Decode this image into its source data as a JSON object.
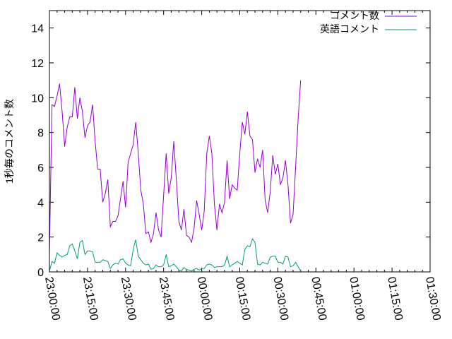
{
  "chart_data": {
    "type": "line",
    "ylabel": "1秒毎のコメント数",
    "ylim": [
      0,
      15
    ],
    "y_ticks": [
      0,
      2,
      4,
      6,
      8,
      10,
      12,
      14
    ],
    "x_ticks": [
      "23:00:00",
      "23:15:00",
      "23:30:00",
      "23:45:00",
      "00:00:00",
      "00:15:00",
      "00:30:00",
      "00:45:00",
      "01:00:00",
      "01:15:00",
      "01:30:00"
    ],
    "x_range_minutes": [
      0,
      150
    ],
    "x_unit_note": "minutes after 23:00:00",
    "legend_position": "top-right",
    "series": [
      {
        "name": "コメント数",
        "color": "#9400d3",
        "points": [
          [
            0,
            1.0
          ],
          [
            1,
            9.6
          ],
          [
            2,
            9.5
          ],
          [
            3,
            10.1
          ],
          [
            4,
            10.8
          ],
          [
            5,
            9.2
          ],
          [
            6,
            7.2
          ],
          [
            7,
            8.3
          ],
          [
            8,
            8.9
          ],
          [
            9,
            8.9
          ],
          [
            10,
            10.6
          ],
          [
            11,
            8.8
          ],
          [
            12,
            10.0
          ],
          [
            13,
            9.2
          ],
          [
            14,
            7.7
          ],
          [
            15,
            8.4
          ],
          [
            16,
            8.6
          ],
          [
            17,
            9.6
          ],
          [
            18,
            7.5
          ],
          [
            19,
            5.9
          ],
          [
            20,
            5.9
          ],
          [
            21,
            4.0
          ],
          [
            22,
            4.5
          ],
          [
            23,
            5.3
          ],
          [
            24,
            2.6
          ],
          [
            25,
            2.9
          ],
          [
            26,
            2.9
          ],
          [
            27,
            3.2
          ],
          [
            28,
            4.2
          ],
          [
            29,
            5.2
          ],
          [
            30,
            3.7
          ],
          [
            31,
            6.3
          ],
          [
            32,
            6.8
          ],
          [
            33,
            7.3
          ],
          [
            34,
            8.6
          ],
          [
            35,
            6.8
          ],
          [
            36,
            4.7
          ],
          [
            37,
            3.9
          ],
          [
            38,
            2.2
          ],
          [
            39,
            2.3
          ],
          [
            40,
            1.7
          ],
          [
            41,
            2.2
          ],
          [
            42,
            3.4
          ],
          [
            43,
            2.4
          ],
          [
            44,
            2.0
          ],
          [
            45,
            4.4
          ],
          [
            46,
            6.8
          ],
          [
            47,
            4.5
          ],
          [
            48,
            5.4
          ],
          [
            49,
            7.5
          ],
          [
            50,
            5.3
          ],
          [
            51,
            2.9
          ],
          [
            52,
            2.4
          ],
          [
            53,
            3.6
          ],
          [
            54,
            2.1
          ],
          [
            55,
            2.0
          ],
          [
            56,
            1.7
          ],
          [
            57,
            2.5
          ],
          [
            58,
            4.1
          ],
          [
            59,
            3.3
          ],
          [
            60,
            2.4
          ],
          [
            61,
            3.5
          ],
          [
            62,
            6.8
          ],
          [
            63,
            7.8
          ],
          [
            64,
            6.8
          ],
          [
            65,
            3.9
          ],
          [
            66,
            2.4
          ],
          [
            67,
            3.9
          ],
          [
            68,
            3.4
          ],
          [
            69,
            4.0
          ],
          [
            70,
            6.4
          ],
          [
            71,
            4.2
          ],
          [
            72,
            5.0
          ],
          [
            73,
            4.8
          ],
          [
            74,
            4.7
          ],
          [
            75,
            6.8
          ],
          [
            76,
            8.6
          ],
          [
            77,
            7.9
          ],
          [
            78,
            9.2
          ],
          [
            79,
            7.8
          ],
          [
            80,
            7.6
          ],
          [
            81,
            5.7
          ],
          [
            82,
            6.5
          ],
          [
            83,
            6.0
          ],
          [
            84,
            7.0
          ],
          [
            85,
            4.1
          ],
          [
            86,
            3.4
          ],
          [
            87,
            4.6
          ],
          [
            88,
            6.7
          ],
          [
            89,
            5.6
          ],
          [
            90,
            6.2
          ],
          [
            91,
            5.0
          ],
          [
            92,
            5.4
          ],
          [
            93,
            6.4
          ],
          [
            94,
            5.0
          ],
          [
            95,
            2.8
          ],
          [
            96,
            3.3
          ],
          [
            97,
            6.0
          ],
          [
            98,
            8.8
          ],
          [
            99,
            11.0
          ]
        ]
      },
      {
        "name": "英語コメント",
        "color": "#009e73",
        "points": [
          [
            0,
            0.05
          ],
          [
            1,
            0.6
          ],
          [
            2,
            0.5
          ],
          [
            3,
            1.1
          ],
          [
            4,
            0.95
          ],
          [
            5,
            0.85
          ],
          [
            6,
            0.95
          ],
          [
            7,
            1.0
          ],
          [
            8,
            1.5
          ],
          [
            9,
            1.6
          ],
          [
            10,
            1.2
          ],
          [
            11,
            0.75
          ],
          [
            12,
            1.7
          ],
          [
            13,
            1.8
          ],
          [
            14,
            1.0
          ],
          [
            15,
            1.2
          ],
          [
            16,
            1.2
          ],
          [
            17,
            1.15
          ],
          [
            18,
            0.55
          ],
          [
            19,
            0.55
          ],
          [
            20,
            0.55
          ],
          [
            21,
            0.7
          ],
          [
            22,
            0.65
          ],
          [
            23,
            0.6
          ],
          [
            24,
            0.2
          ],
          [
            25,
            0.4
          ],
          [
            26,
            0.5
          ],
          [
            27,
            0.45
          ],
          [
            28,
            0.7
          ],
          [
            29,
            0.75
          ],
          [
            30,
            0.5
          ],
          [
            31,
            0.4
          ],
          [
            32,
            0.35
          ],
          [
            33,
            1.3
          ],
          [
            34,
            1.85
          ],
          [
            35,
            0.9
          ],
          [
            36,
            0.7
          ],
          [
            37,
            0.5
          ],
          [
            38,
            0.4
          ],
          [
            39,
            0.45
          ],
          [
            40,
            0.15
          ],
          [
            41,
            0.2
          ],
          [
            42,
            0.4
          ],
          [
            43,
            0.3
          ],
          [
            44,
            0.3
          ],
          [
            45,
            0.4
          ],
          [
            46,
            1.0
          ],
          [
            47,
            0.3
          ],
          [
            48,
            0.35
          ],
          [
            49,
            0.45
          ],
          [
            50,
            0.3
          ],
          [
            51,
            0.1
          ],
          [
            52,
            0.05
          ],
          [
            53,
            0.25
          ],
          [
            54,
            0.15
          ],
          [
            55,
            0.1
          ],
          [
            56,
            0.05
          ],
          [
            57,
            0.15
          ],
          [
            58,
            0.2
          ],
          [
            59,
            0.1
          ],
          [
            60,
            0.2
          ],
          [
            61,
            0.2
          ],
          [
            62,
            0.4
          ],
          [
            63,
            0.45
          ],
          [
            64,
            0.4
          ],
          [
            65,
            0.25
          ],
          [
            66,
            0.3
          ],
          [
            67,
            0.3
          ],
          [
            68,
            0.3
          ],
          [
            69,
            0.4
          ],
          [
            70,
            0.9
          ],
          [
            71,
            0.3
          ],
          [
            72,
            0.4
          ],
          [
            73,
            0.5
          ],
          [
            74,
            0.6
          ],
          [
            75,
            0.5
          ],
          [
            76,
            0.4
          ],
          [
            77,
            1.3
          ],
          [
            78,
            1.5
          ],
          [
            79,
            1.45
          ],
          [
            80,
            1.9
          ],
          [
            81,
            1.7
          ],
          [
            82,
            0.45
          ],
          [
            83,
            0.4
          ],
          [
            84,
            0.55
          ],
          [
            85,
            0.5
          ],
          [
            86,
            0.45
          ],
          [
            87,
            0.85
          ],
          [
            88,
            0.9
          ],
          [
            89,
            0.9
          ],
          [
            90,
            0.55
          ],
          [
            91,
            0.55
          ],
          [
            92,
            0.45
          ],
          [
            93,
            0.9
          ],
          [
            94,
            0.85
          ],
          [
            95,
            0.3
          ],
          [
            96,
            0.35
          ],
          [
            97,
            0.55
          ],
          [
            98,
            0.3
          ],
          [
            99,
            0.05
          ]
        ]
      }
    ]
  }
}
